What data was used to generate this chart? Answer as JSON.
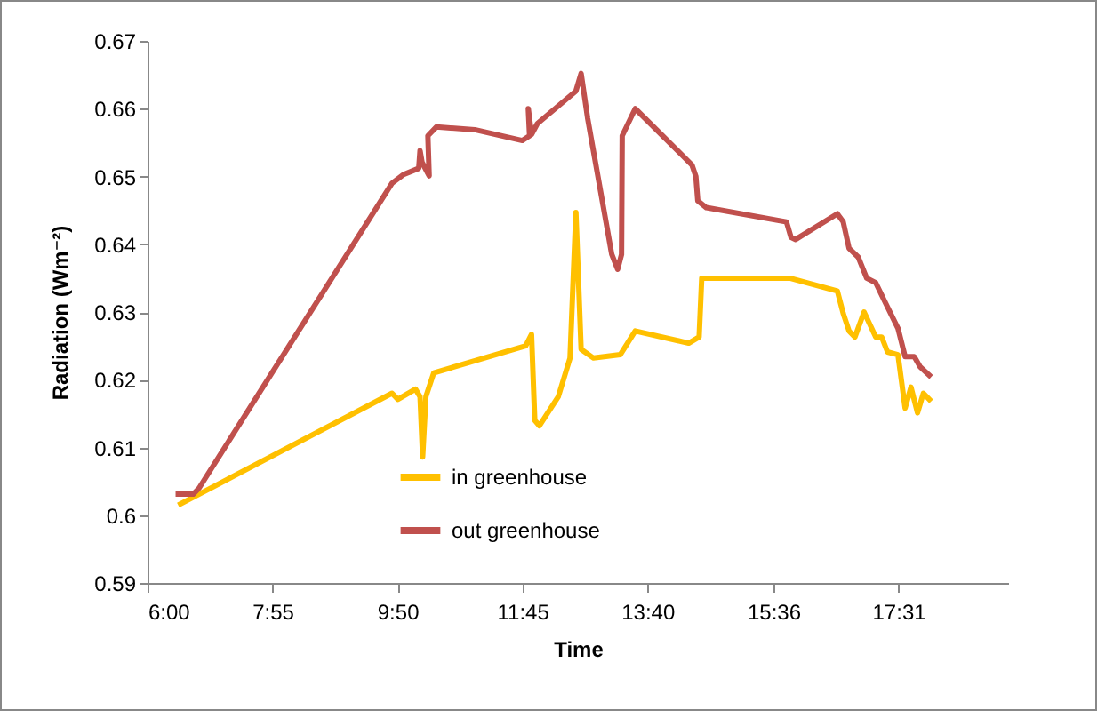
{
  "chart_data": {
    "type": "line",
    "xlabel": "Time",
    "ylabel": "Radiation  (Wm⁻²)",
    "xlim": [
      6,
      19.2
    ],
    "xticks": [
      {
        "value": 6,
        "label": "6:00"
      },
      {
        "value": 7.9167,
        "label": "7:55"
      },
      {
        "value": 9.8333,
        "label": "9:50"
      },
      {
        "value": 11.75,
        "label": "11:45"
      },
      {
        "value": 13.6667,
        "label": "13:40"
      },
      {
        "value": 15.6,
        "label": "15:36"
      },
      {
        "value": 17.5167,
        "label": "17:31"
      }
    ],
    "ylim": [
      0.59,
      0.67
    ],
    "yticks": [
      0.59,
      0.6,
      0.61,
      0.62,
      0.63,
      0.64,
      0.65,
      0.66,
      0.67
    ],
    "grid": false,
    "legend": "bottom",
    "line_style": "solid",
    "series": [
      {
        "name": "in greenhouse",
        "color": "#ffc000",
        "x": [
          6.47,
          9.75,
          9.84,
          10.11,
          10.18,
          10.22,
          10.27,
          10.39,
          11.8,
          11.89,
          11.94,
          12.01,
          12.3,
          12.48,
          12.57,
          12.65,
          12.84,
          13.25,
          13.48,
          14.3,
          14.46,
          14.5,
          15.85,
          16.58,
          16.67,
          16.76,
          16.85,
          16.99,
          17.17,
          17.26,
          17.35,
          17.51,
          17.62,
          17.71,
          17.81,
          17.9,
          18.02
        ],
        "values": [
          0.6015,
          0.618,
          0.6171,
          0.6186,
          0.6175,
          0.6086,
          0.6175,
          0.621,
          0.625,
          0.6267,
          0.614,
          0.6132,
          0.6175,
          0.6232,
          0.6447,
          0.6245,
          0.6232,
          0.6237,
          0.6272,
          0.6254,
          0.6263,
          0.635,
          0.635,
          0.6331,
          0.6298,
          0.6272,
          0.6263,
          0.63,
          0.6263,
          0.6263,
          0.6241,
          0.6237,
          0.6158,
          0.6189,
          0.6151,
          0.618,
          0.6168
        ]
      },
      {
        "name": "out greenhouse",
        "color": "#c0504d",
        "x": [
          6.43,
          6.7,
          6.79,
          9.75,
          9.93,
          10.16,
          10.18,
          10.21,
          10.32,
          10.3,
          10.43,
          11.02,
          11.75,
          11.86,
          11.84,
          11.89,
          11.98,
          12.57,
          12.65,
          12.75,
          13.12,
          13.21,
          13.27,
          13.28,
          13.48,
          14.35,
          14.41,
          14.44,
          14.57,
          15.8,
          15.87,
          15.94,
          16.58,
          16.67,
          16.76,
          16.9,
          17.03,
          17.17,
          17.31,
          17.51,
          17.62,
          17.76,
          17.85,
          18.02
        ],
        "values": [
          0.6031,
          0.6031,
          0.604,
          0.649,
          0.6503,
          0.6512,
          0.6538,
          0.6521,
          0.6501,
          0.656,
          0.6573,
          0.6569,
          0.6553,
          0.656,
          0.66,
          0.6562,
          0.6578,
          0.6626,
          0.6652,
          0.6586,
          0.6385,
          0.6363,
          0.6385,
          0.656,
          0.66,
          0.6517,
          0.65,
          0.6464,
          0.6454,
          0.6433,
          0.641,
          0.6407,
          0.6445,
          0.6433,
          0.6394,
          0.6381,
          0.635,
          0.6343,
          0.6315,
          0.6276,
          0.6234,
          0.6234,
          0.6219,
          0.6204
        ]
      }
    ]
  }
}
